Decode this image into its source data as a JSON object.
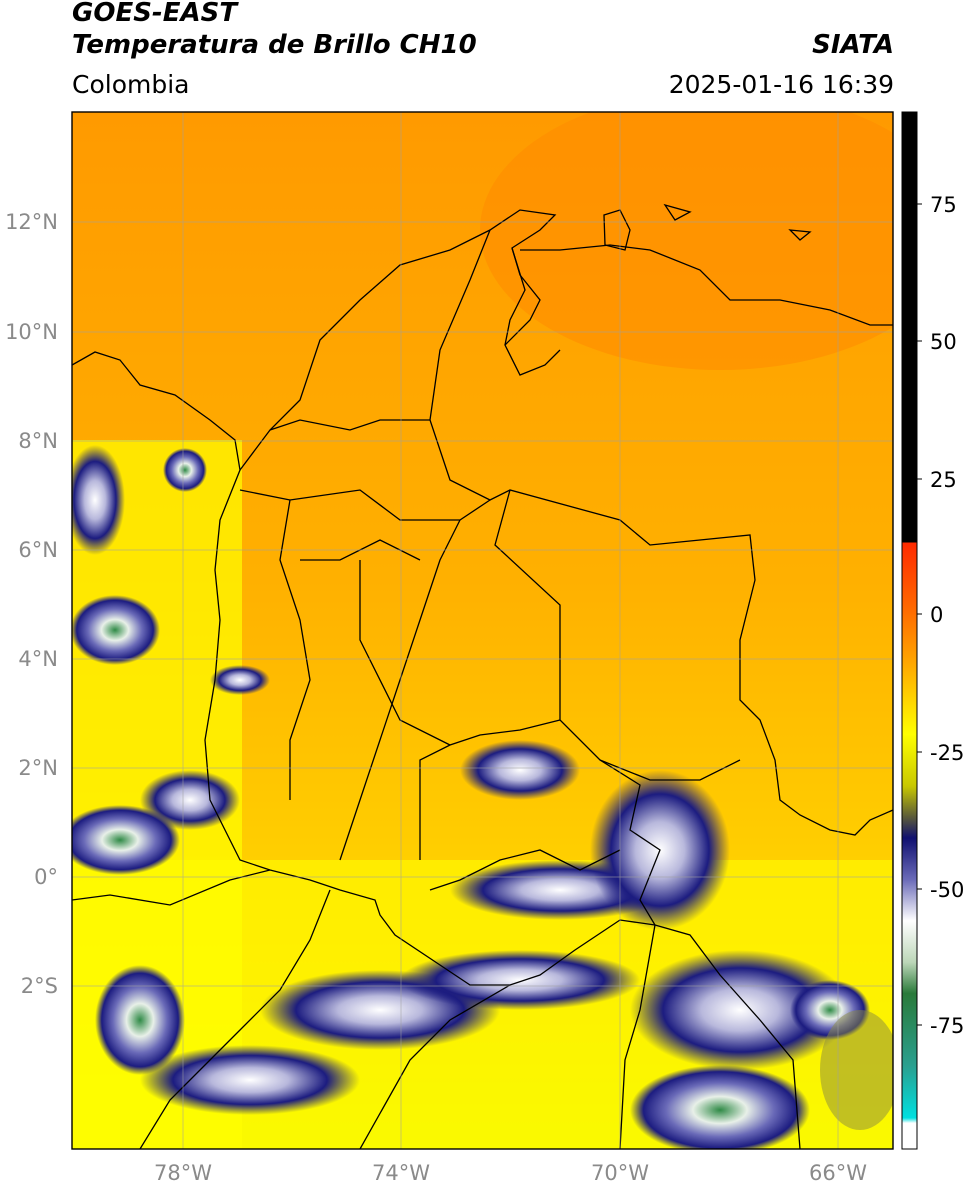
{
  "header": {
    "satellite": "GOES-EAST",
    "product": "Temperatura de Brillo CH10",
    "source": "SIATA",
    "region": "Colombia",
    "timestamp": "2025-01-16 16:39"
  },
  "map": {
    "lat_labels": [
      "12°N",
      "10°N",
      "8°N",
      "6°N",
      "4°N",
      "2°N",
      "0°",
      "2°S"
    ],
    "lon_labels": [
      "78°W",
      "74°W",
      "70°W",
      "66°W"
    ],
    "lon_range": [
      -80,
      -65
    ],
    "lat_range": [
      -5,
      14
    ]
  },
  "colorbar": {
    "ticks": [
      "75",
      "50",
      "25",
      "0",
      "-25",
      "-50",
      "-75"
    ],
    "range": [
      -100,
      90
    ],
    "colors": {
      "warm_high": "#000000",
      "red": "#ff2a00",
      "orange": "#ff9900",
      "yellow": "#ffff00",
      "olive": "#9a9a3a",
      "navy": "#101070",
      "white": "#ffffff",
      "green": "#2a7a3a",
      "cyan": "#00e0e0"
    }
  }
}
